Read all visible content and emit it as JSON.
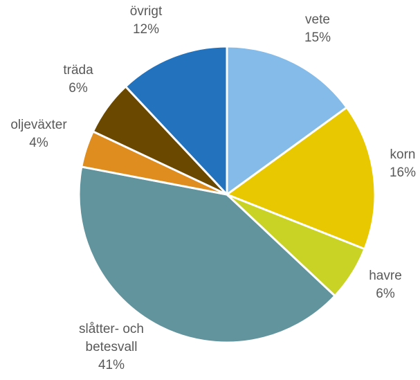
{
  "chart_data": {
    "type": "pie",
    "start_angle_deg": 0,
    "direction": "clockwise",
    "slices": [
      {
        "label_lines": [
          "vete"
        ],
        "percent_label": "15%",
        "value": 15,
        "color": "#85BBE8"
      },
      {
        "label_lines": [
          "korn"
        ],
        "percent_label": "16%",
        "value": 16,
        "color": "#E8C800"
      },
      {
        "label_lines": [
          "havre"
        ],
        "percent_label": "6%",
        "value": 6,
        "color": "#C9D326"
      },
      {
        "label_lines": [
          "slåtter- och",
          "betesvall"
        ],
        "percent_label": "41%",
        "value": 41,
        "color": "#62949E"
      },
      {
        "label_lines": [
          "oljeväxter"
        ],
        "percent_label": "4%",
        "value": 4,
        "color": "#DE8D1E"
      },
      {
        "label_lines": [
          "träda"
        ],
        "percent_label": "6%",
        "value": 6,
        "color": "#6B4800"
      },
      {
        "label_lines": [
          "övrigt"
        ],
        "percent_label": "12%",
        "value": 12,
        "color": "#2272BE"
      }
    ]
  }
}
